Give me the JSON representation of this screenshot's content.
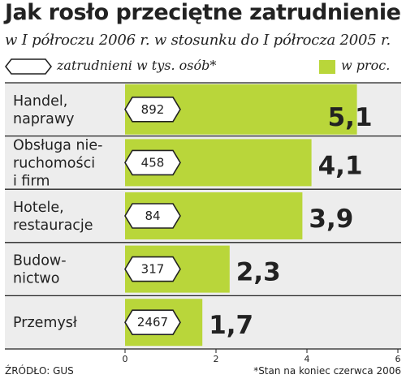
{
  "header": {
    "title": "Jak rosło przeciętne zatrudnienie",
    "subtitle": "w I półroczu 2006 r. w stosunku do I półrocza 2005 r."
  },
  "legend": {
    "employed_label": "zatrudnieni w tys. osób*",
    "percent_label": "w proc."
  },
  "colors": {
    "bar": "#b9d63a",
    "highlight_value": "#c0306a",
    "panel_bg": "#ededed",
    "text": "#222222"
  },
  "chart_data": {
    "type": "bar",
    "orientation": "horizontal",
    "categories": [
      [
        "Handel,",
        "naprawy"
      ],
      [
        "Obsługa nie-",
        "ruchomości",
        "i firm"
      ],
      [
        "Hotele,",
        "restauracje"
      ],
      [
        "Budow-",
        "nictwo"
      ],
      [
        "Przemysł"
      ]
    ],
    "series": [
      {
        "name": "w proc.",
        "values": [
          5.1,
          4.1,
          3.9,
          2.3,
          1.7
        ]
      }
    ],
    "value_labels": [
      "5,1",
      "4,1",
      "3,9",
      "2,3",
      "1,7"
    ],
    "employed_thousands": [
      "892",
      "458",
      "84",
      "317",
      "2467"
    ],
    "xlim": [
      0,
      6
    ],
    "xticks": [
      "0",
      "2",
      "4",
      "6"
    ],
    "highlight_index": 0
  },
  "footer": {
    "source": "ŹRÓDŁO: GUS",
    "note": "*Stan na koniec czerwca 2006"
  }
}
